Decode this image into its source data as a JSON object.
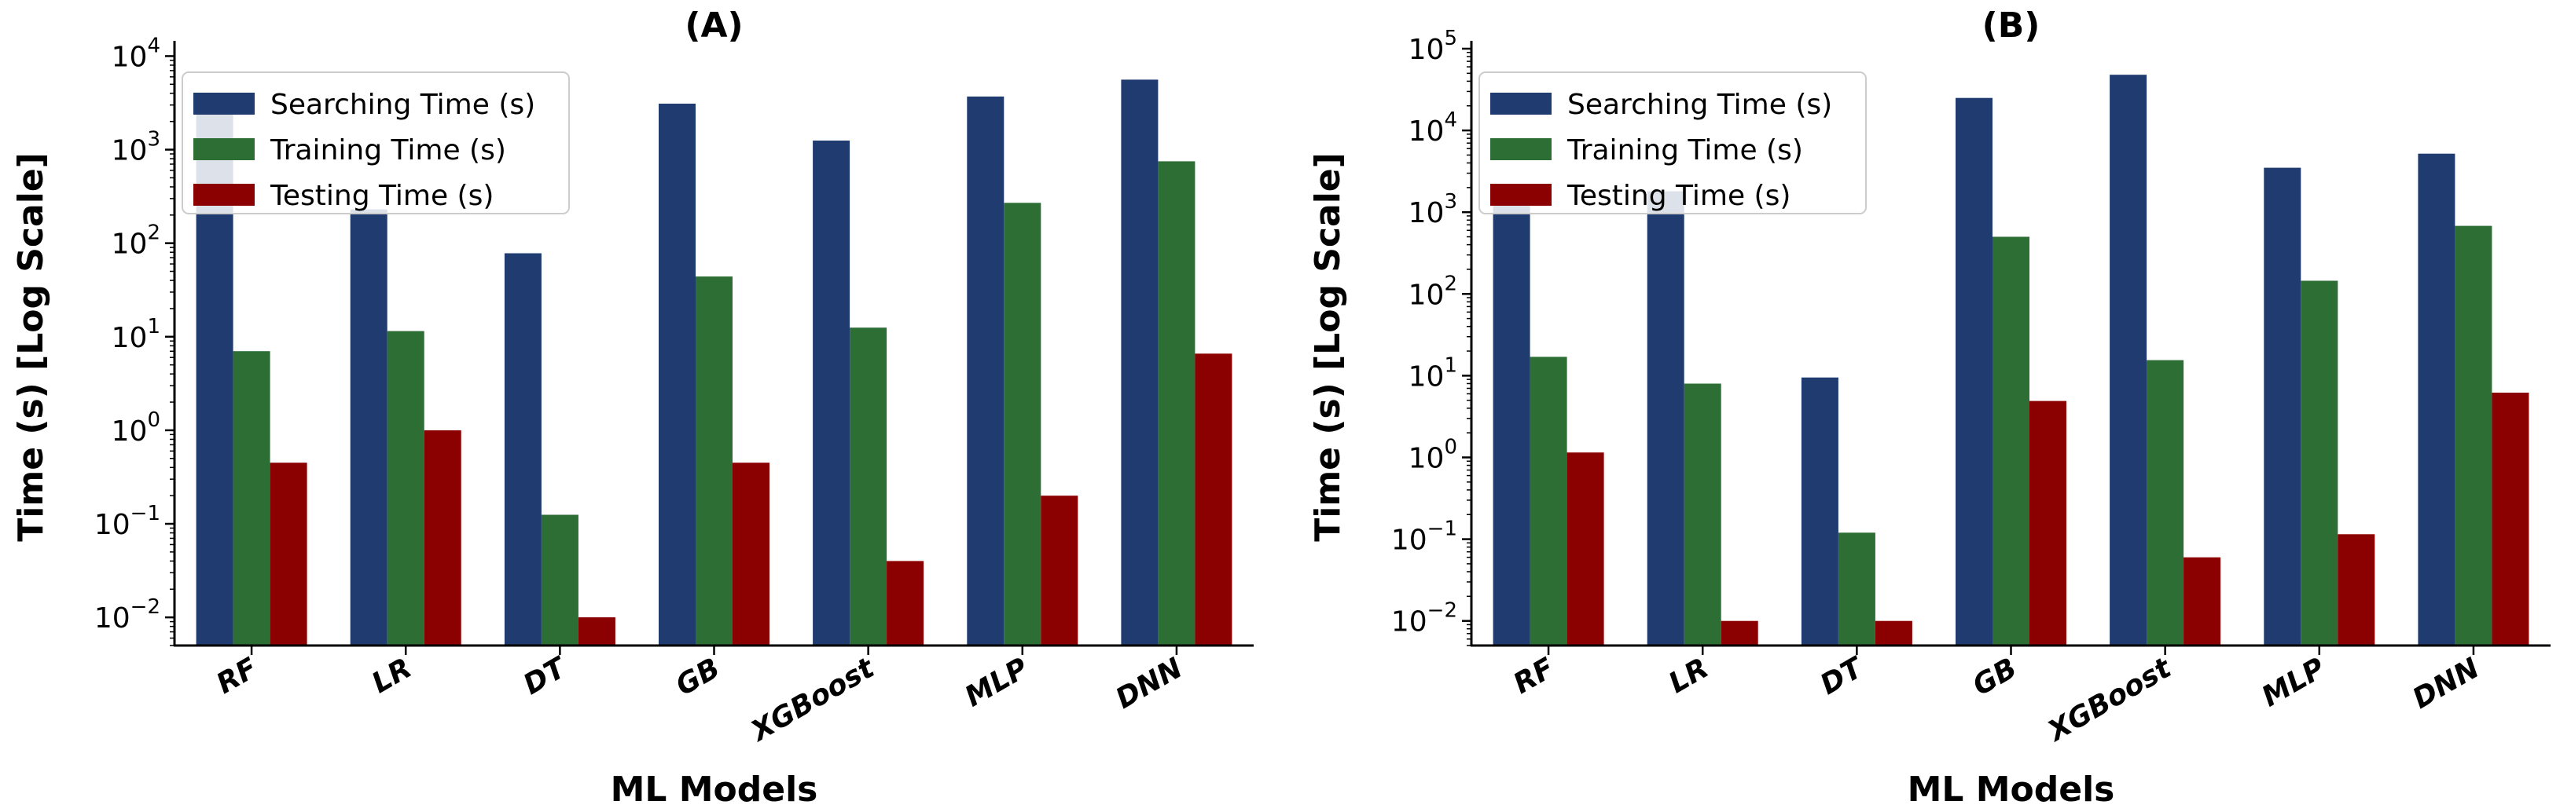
{
  "colors": {
    "searching": "#1f3b70",
    "training": "#2d6e34",
    "testing": "#8b0000",
    "axis": "#000000",
    "legend_border": "#cccccc"
  },
  "chart_data": [
    {
      "type": "bar",
      "title": "(A)",
      "xlabel": "ML Models",
      "ylabel": "Time (s) [Log Scale]",
      "yscale": "log",
      "ylim": [
        0.005,
        12000
      ],
      "yticks": [
        {
          "value": 0.01,
          "base": "10",
          "exp": "−2"
        },
        {
          "value": 0.1,
          "base": "10",
          "exp": "−1"
        },
        {
          "value": 1,
          "base": "10",
          "exp": "0"
        },
        {
          "value": 10,
          "base": "10",
          "exp": "1"
        },
        {
          "value": 100,
          "base": "10",
          "exp": "2"
        },
        {
          "value": 1000,
          "base": "10",
          "exp": "3"
        },
        {
          "value": 10000,
          "base": "10",
          "exp": "4"
        }
      ],
      "categories": [
        "RF",
        "LR",
        "DT",
        "GB",
        "XGBoost",
        "MLP",
        "DNN"
      ],
      "series": [
        {
          "name": "Searching Time (s)",
          "key": "searching",
          "values": [
            2400,
            230,
            78,
            3100,
            1250,
            3700,
            5600
          ]
        },
        {
          "name": "Training Time (s)",
          "key": "training",
          "values": [
            7,
            11.5,
            0.125,
            44,
            12.5,
            270,
            750
          ]
        },
        {
          "name": "Testing Time (s)",
          "key": "testing",
          "values": [
            0.45,
            1.0,
            0.01,
            0.45,
            0.04,
            0.2,
            6.6
          ]
        }
      ],
      "legend": "top-left",
      "grid": false
    },
    {
      "type": "bar",
      "title": "(B)",
      "xlabel": "ML Models",
      "ylabel": "Time (s) [Log Scale]",
      "yscale": "log",
      "ylim": [
        0.005,
        100000
      ],
      "yticks": [
        {
          "value": 0.01,
          "base": "10",
          "exp": "−2"
        },
        {
          "value": 0.1,
          "base": "10",
          "exp": "−1"
        },
        {
          "value": 1,
          "base": "10",
          "exp": "0"
        },
        {
          "value": 10,
          "base": "10",
          "exp": "1"
        },
        {
          "value": 100,
          "base": "10",
          "exp": "2"
        },
        {
          "value": 1000,
          "base": "10",
          "exp": "3"
        },
        {
          "value": 10000,
          "base": "10",
          "exp": "4"
        },
        {
          "value": 100000,
          "base": "10",
          "exp": "5"
        }
      ],
      "categories": [
        "RF",
        "LR",
        "DT",
        "GB",
        "XGBoost",
        "MLP",
        "DNN"
      ],
      "series": [
        {
          "name": "Searching Time (s)",
          "key": "searching",
          "values": [
            1600,
            1800,
            9.5,
            25000,
            48000,
            3500,
            5200
          ]
        },
        {
          "name": "Training Time (s)",
          "key": "training",
          "values": [
            17,
            8,
            0.12,
            500,
            15.5,
            145,
            680
          ]
        },
        {
          "name": "Testing Time (s)",
          "key": "testing",
          "values": [
            1.15,
            0.01,
            0.01,
            4.9,
            0.06,
            0.115,
            6.2
          ]
        }
      ],
      "legend": "top-left",
      "grid": false
    }
  ]
}
